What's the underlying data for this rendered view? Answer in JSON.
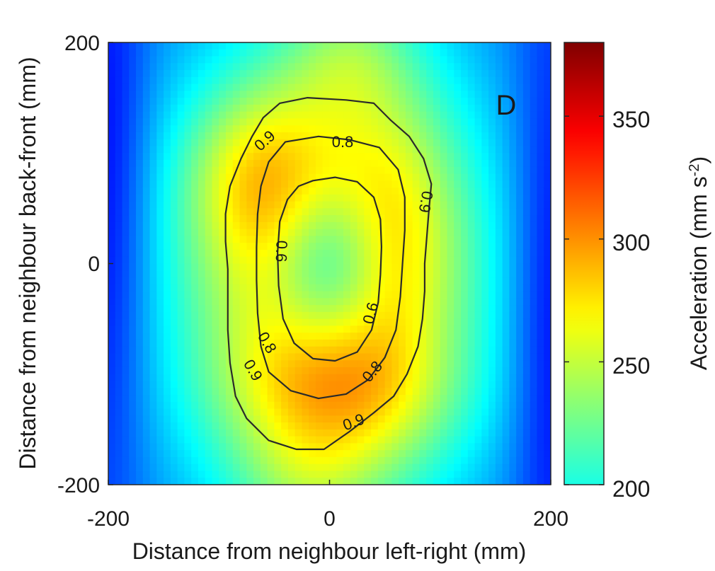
{
  "chart_data": {
    "type": "heatmap",
    "panel_label": "D",
    "xlabel": "Distance from neighbour left-right (mm)",
    "ylabel": "Distance from neighbour back-front (mm)",
    "xlim": [
      -200,
      200
    ],
    "ylim": [
      -200,
      200
    ],
    "x_ticks": [
      "-200",
      "0",
      "200"
    ],
    "y_ticks": [
      "200",
      "0",
      "-200"
    ],
    "colorbar": {
      "label_main": "Acceleration (mm s",
      "label_sup": "-2",
      "label_close": ")",
      "range": [
        200,
        380
      ],
      "ticks": [
        "350",
        "300",
        "250",
        "200"
      ],
      "colormap": "jet (upper portion)"
    },
    "contour_labels": {
      "c09": "0.9",
      "c08": "0.8",
      "c06": "0.6"
    },
    "contours": [
      {
        "level": 0.9,
        "points": [
          [
            -45,
            145
          ],
          [
            -20,
            150
          ],
          [
            15,
            148
          ],
          [
            40,
            145
          ],
          [
            55,
            130
          ],
          [
            72,
            115
          ],
          [
            85,
            95
          ],
          [
            92,
            72
          ],
          [
            90,
            50
          ],
          [
            88,
            25
          ],
          [
            86,
            0
          ],
          [
            86,
            -25
          ],
          [
            84,
            -50
          ],
          [
            80,
            -75
          ],
          [
            70,
            -100
          ],
          [
            58,
            -120
          ],
          [
            40,
            -135
          ],
          [
            18,
            -152
          ],
          [
            -5,
            -168
          ],
          [
            -30,
            -168
          ],
          [
            -55,
            -160
          ],
          [
            -75,
            -140
          ],
          [
            -85,
            -120
          ],
          [
            -90,
            -90
          ],
          [
            -92,
            -60
          ],
          [
            -92,
            -30
          ],
          [
            -92,
            -5
          ],
          [
            -94,
            20
          ],
          [
            -94,
            45
          ],
          [
            -90,
            70
          ],
          [
            -80,
            95
          ],
          [
            -70,
            115
          ],
          [
            -60,
            132
          ]
        ]
      },
      {
        "level": 0.8,
        "points": [
          [
            -40,
            110
          ],
          [
            -10,
            115
          ],
          [
            18,
            112
          ],
          [
            45,
            105
          ],
          [
            62,
            85
          ],
          [
            68,
            60
          ],
          [
            68,
            30
          ],
          [
            66,
            0
          ],
          [
            64,
            -30
          ],
          [
            60,
            -60
          ],
          [
            50,
            -85
          ],
          [
            35,
            -105
          ],
          [
            15,
            -118
          ],
          [
            -10,
            -122
          ],
          [
            -35,
            -115
          ],
          [
            -55,
            -98
          ],
          [
            -62,
            -75
          ],
          [
            -65,
            -45
          ],
          [
            -66,
            -15
          ],
          [
            -66,
            15
          ],
          [
            -65,
            45
          ],
          [
            -62,
            70
          ],
          [
            -55,
            92
          ]
        ]
      },
      {
        "level": 0.6,
        "points": [
          [
            -15,
            75
          ],
          [
            5,
            78
          ],
          [
            25,
            74
          ],
          [
            40,
            60
          ],
          [
            46,
            40
          ],
          [
            47,
            15
          ],
          [
            46,
            -10
          ],
          [
            44,
            -35
          ],
          [
            38,
            -60
          ],
          [
            25,
            -80
          ],
          [
            5,
            -88
          ],
          [
            -15,
            -86
          ],
          [
            -32,
            -72
          ],
          [
            -42,
            -50
          ],
          [
            -46,
            -20
          ],
          [
            -47,
            10
          ],
          [
            -45,
            38
          ],
          [
            -38,
            58
          ],
          [
            -28,
            70
          ]
        ]
      }
    ],
    "field_description": "acceleration peaks (~320-340) in a ring around the centre, low (~205) at the centre and along the far left/right edges (~200 floor, blue)"
  }
}
